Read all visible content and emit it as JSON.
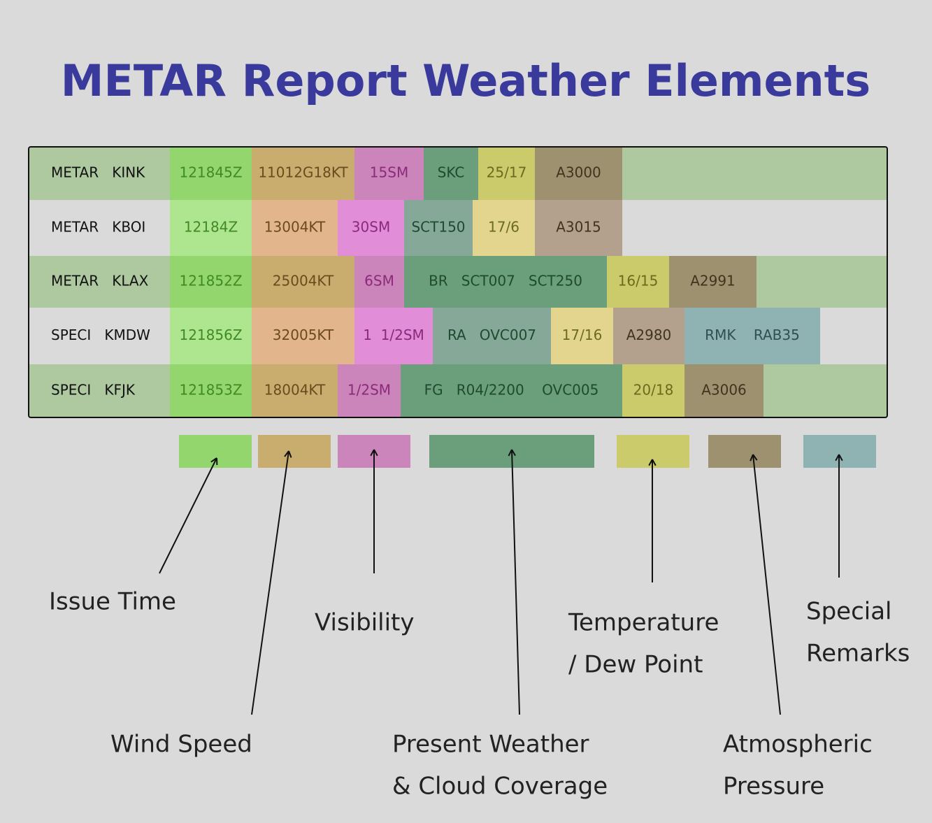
{
  "title": "METAR Report Weather Elements",
  "table": {
    "rows": [
      [
        "METAR   KINK",
        "121845Z",
        "11012G18KT",
        "15SM",
        "SKC",
        "25/17",
        "A3000"
      ],
      [
        "METAR   KBOI",
        "12184Z",
        "13004KT",
        "30SM",
        "SCT150",
        "17/6",
        "A3015"
      ],
      [
        "METAR   KLAX",
        "121852Z",
        "25004KT",
        "6SM",
        "BR   SCT007   SCT250",
        "16/15",
        "A2991"
      ],
      [
        "SPECI   KMDW",
        "121856Z",
        "32005KT",
        "1  1/2SM",
        "RA   OVC007",
        "17/16",
        "A2980",
        "RMK    RAB35"
      ],
      [
        "SPECI   KFJK",
        "121853Z",
        "18004KT",
        "1/2SM",
        "FG   R04/2200    OVC005",
        "20/18",
        "A3006"
      ]
    ]
  },
  "legend": [
    {
      "label": [
        "Issue Time"
      ]
    },
    {
      "label": [
        "Wind Speed"
      ]
    },
    {
      "label": [
        "Visibility"
      ]
    },
    {
      "label": [
        "Present Weather",
        "& Cloud Coverage"
      ]
    },
    {
      "label": [
        "Temperature",
        "/ Dew Point"
      ]
    },
    {
      "label": [
        "Atmospheric",
        "Pressure"
      ]
    },
    {
      "label": [
        "Special",
        "Remarks"
      ]
    }
  ]
}
